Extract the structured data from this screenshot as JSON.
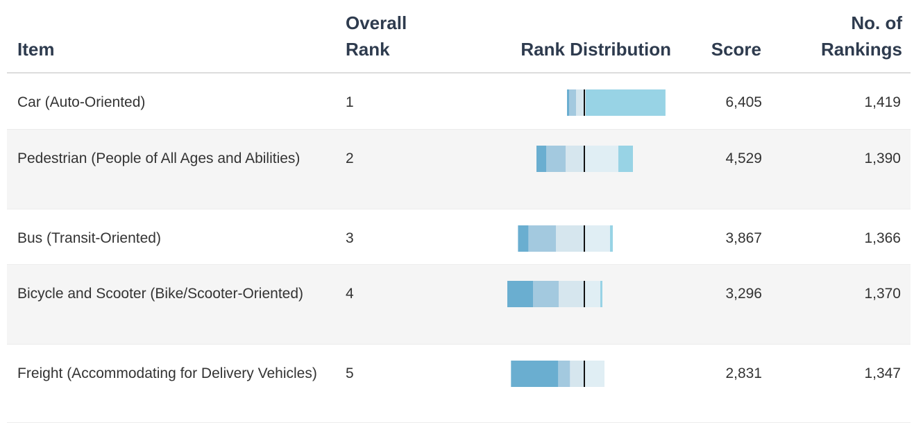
{
  "header": {
    "item": "Item",
    "overall_rank": "Overall\nRank",
    "rank_distribution": "Rank Distribution",
    "score": "Score",
    "rankings": "No. of\nRankings"
  },
  "rank_colors": [
    "#98d3e5",
    "#e0eef4",
    "#d6e6ee",
    "#a3c9df",
    "#6aaed0"
  ],
  "rows": [
    {
      "item": "Car (Auto-Oriented)",
      "rank": "1",
      "distribution": [
        1149,
        20,
        120,
        100,
        30
      ],
      "score": "6,405",
      "rankings": "1,419"
    },
    {
      "item": "Pedestrian (People of All Ages and Abilities)",
      "rank": "2",
      "distribution": [
        210,
        490,
        270,
        280,
        140
      ],
      "score": "4,529",
      "rankings": "1,390"
    },
    {
      "item": "Bus (Transit-Oriented)",
      "rank": "3",
      "distribution": [
        40,
        370,
        410,
        396,
        150
      ],
      "score": "3,867",
      "rankings": "1,366"
    },
    {
      "item": "Bicycle and Scooter (Bike/Scooter-Oriented)",
      "rank": "4",
      "distribution": [
        30,
        230,
        370,
        370,
        370
      ],
      "score": "3,296",
      "rankings": "1,370"
    },
    {
      "item": "Freight (Accommodating for Delivery Vehicles)",
      "rank": "5",
      "distribution": [
        0,
        290,
        207,
        170,
        680
      ],
      "score": "2,831",
      "rankings": "1,347"
    }
  ]
}
